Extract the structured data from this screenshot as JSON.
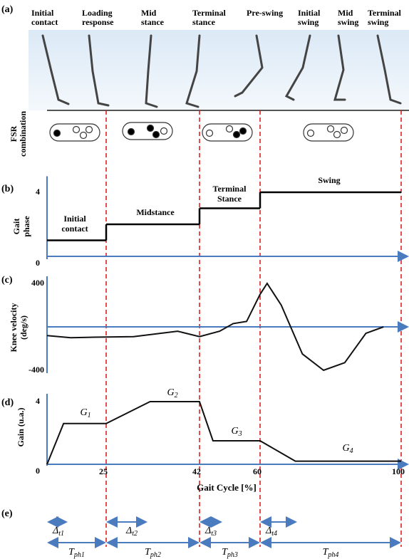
{
  "panel_labels": [
    "(a)",
    "(b)",
    "(c)",
    "(d)",
    "(e)"
  ],
  "phases": [
    [
      "Initial",
      "contact"
    ],
    [
      "Loading",
      "response"
    ],
    [
      "Mid",
      "stance"
    ],
    [
      "Terminal",
      "stance"
    ],
    [
      "Pre-swing"
    ],
    [
      "Initial",
      "swing"
    ],
    [
      "Mid",
      "swing"
    ],
    [
      "Terminal",
      "swing"
    ]
  ],
  "fsr_label": [
    "FSR",
    "combination"
  ],
  "gait_phase": {
    "ylabel": [
      "Gait",
      "phase"
    ],
    "ylim": [
      0,
      5
    ],
    "yticks": [
      0,
      4
    ],
    "x": [
      0,
      25,
      42,
      60,
      100
    ],
    "levels": [
      1,
      2,
      3,
      4
    ],
    "labels": [
      [
        "Initial",
        "contact"
      ],
      [
        "Midstance"
      ],
      [
        "Terminal",
        "Stance"
      ],
      [
        "Swing"
      ]
    ]
  },
  "knee_velocity": {
    "ylabel": [
      "Knee velocity",
      "(deg/s)"
    ],
    "ylim": [
      -400,
      400
    ],
    "yticks": [
      400,
      -400
    ],
    "x": [
      0,
      10,
      20,
      30,
      38,
      42,
      48,
      52,
      56,
      60,
      62,
      66,
      72,
      78,
      84,
      90,
      95
    ],
    "values": [
      -80,
      -100,
      -95,
      -90,
      -40,
      -90,
      -40,
      30,
      50,
      300,
      400,
      200,
      -250,
      -400,
      -330,
      -60,
      0
    ]
  },
  "gain": {
    "ylabel": "Gain (u.a.)",
    "ylim": [
      0,
      4.5
    ],
    "yticks": [
      0,
      4
    ],
    "xticks": [
      25,
      42,
      60,
      100
    ],
    "xlabel": "Gait Cycle [%]",
    "x": [
      0,
      7,
      25,
      33,
      42,
      46,
      60,
      70,
      100
    ],
    "values": [
      0,
      2.6,
      2.6,
      4,
      4,
      1.5,
      1.5,
      0.2,
      0.2
    ],
    "labels": [
      {
        "base": "G",
        "sub": "1"
      },
      {
        "base": "G",
        "sub": "2"
      },
      {
        "base": "G",
        "sub": "3"
      },
      {
        "base": "G",
        "sub": "4"
      }
    ]
  },
  "timing": {
    "delta": [
      {
        "base": "Δ",
        "sub": "t1"
      },
      {
        "base": "Δ",
        "sub": "t2"
      },
      {
        "base": "Δ",
        "sub": "t3"
      },
      {
        "base": "Δ",
        "sub": "t4"
      }
    ],
    "phase": [
      {
        "base": "T",
        "sub": "ph1"
      },
      {
        "base": "T",
        "sub": "ph2"
      },
      {
        "base": "T",
        "sub": "ph3"
      },
      {
        "base": "T",
        "sub": "ph4"
      }
    ]
  }
}
